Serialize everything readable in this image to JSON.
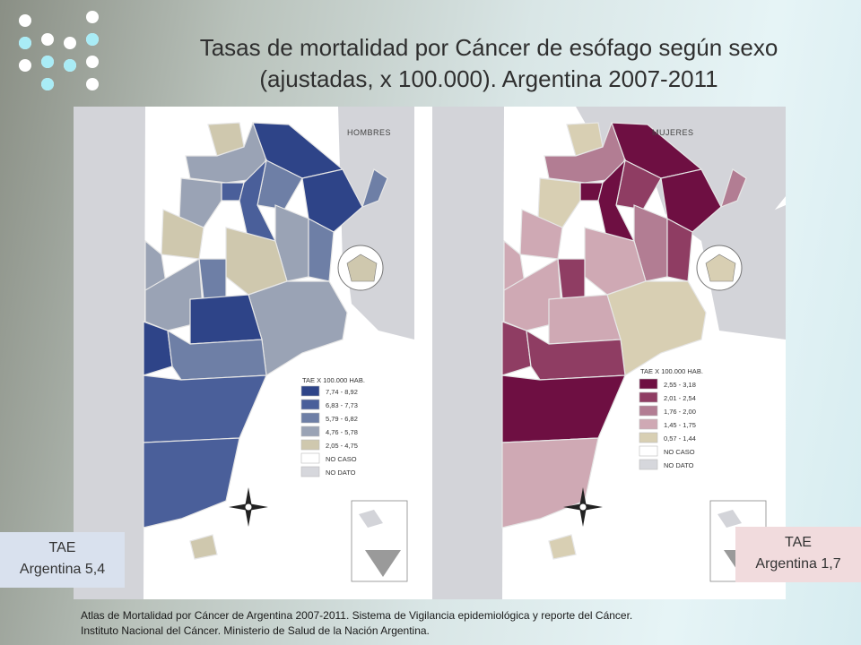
{
  "slide": {
    "title_line1": "Tasas de mortalidad por Cáncer de esófago según sexo",
    "title_line2": "(ajustadas, x 100.000). Argentina 2007-2011",
    "source_line1": "Atlas de Mortalidad por Cáncer de Argentina 2007-2011. Sistema de Vigilancia epidemiológica y reporte del Cáncer.",
    "source_line2": "Instituto Nacional del Cáncer. Ministerio de Salud de la Nación Argentina."
  },
  "left_map": {
    "label": "HOMBRES",
    "legend_title": "TAE X 100.000 HAB.",
    "legend": [
      {
        "label": "7,74 - 8,92",
        "color": "#2e4488"
      },
      {
        "label": "6,83 - 7,73",
        "color": "#4a5f9a"
      },
      {
        "label": "5,79 - 6,82",
        "color": "#6e7fa6"
      },
      {
        "label": "4,76 - 5,78",
        "color": "#9aa3b5"
      },
      {
        "label": "2,05 - 4,75",
        "color": "#cfc8ae"
      },
      {
        "label": "NO CASO",
        "color": "#ffffff"
      },
      {
        "label": "NO DATO",
        "color": "#d6d7dc"
      }
    ],
    "box_line1": "TAE",
    "box_line2": "Argentina 5,4"
  },
  "right_map": {
    "label": "MUJERES",
    "legend_title": "TAE X 100.000 HAB.",
    "legend": [
      {
        "label": "2,55 - 3,18",
        "color": "#6e0f42"
      },
      {
        "label": "2,01 - 2,54",
        "color": "#8f3d63"
      },
      {
        "label": "1,76 - 2,00",
        "color": "#b27d93"
      },
      {
        "label": "1,45 - 1,75",
        "color": "#cfa9b4"
      },
      {
        "label": "0,57 - 1,44",
        "color": "#d8cfb3"
      },
      {
        "label": "NO CASO",
        "color": "#ffffff"
      },
      {
        "label": "NO DATO",
        "color": "#d6d7dc"
      }
    ],
    "box_line1": "TAE",
    "box_line2": "Argentina 1,7"
  },
  "colors": {
    "sea": "#ffffff",
    "neighbor_land": "#d3d4d9",
    "border": "#e8e8e8"
  }
}
